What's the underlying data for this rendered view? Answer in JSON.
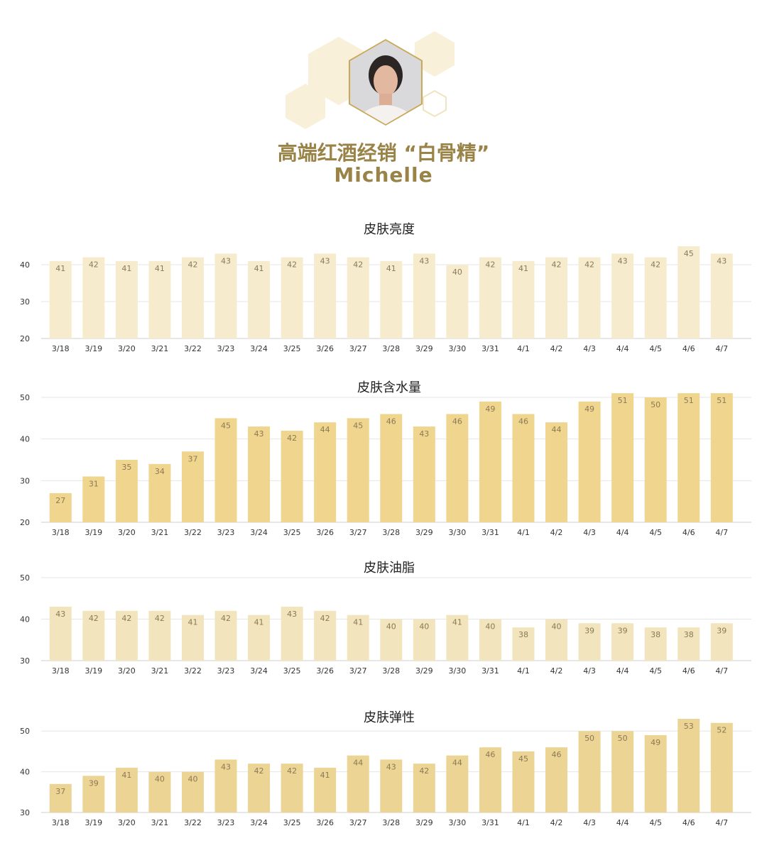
{
  "header": {
    "title_cn": "高端红酒经销 “白骨精”",
    "title_en": "Michelle"
  },
  "colors": {
    "title": "#9a8347",
    "hex_light": "#f8f0d8",
    "avatar_border": "#c9a957",
    "bar_brightness": "#f6ebcc",
    "bar_moisture": "#f0d58e",
    "bar_oil": "#f2e4bd",
    "bar_elasticity": "#ecd494"
  },
  "chart_data": [
    {
      "type": "bar",
      "title": "皮肤亮度",
      "categories": [
        "3/18",
        "3/19",
        "3/20",
        "3/21",
        "3/22",
        "3/23",
        "3/24",
        "3/25",
        "3/26",
        "3/27",
        "3/28",
        "3/29",
        "3/30",
        "3/31",
        "4/1",
        "4/2",
        "4/3",
        "4/4",
        "4/5",
        "4/6",
        "4/7"
      ],
      "values": [
        41,
        42,
        41,
        41,
        42,
        43,
        41,
        42,
        43,
        42,
        41,
        43,
        40,
        42,
        41,
        42,
        42,
        43,
        42,
        45,
        43
      ],
      "ylim": [
        20,
        45
      ],
      "yticks": [
        20,
        30,
        40
      ],
      "grid": true
    },
    {
      "type": "bar",
      "title": "皮肤含水量",
      "categories": [
        "3/18",
        "3/19",
        "3/20",
        "3/21",
        "3/22",
        "3/23",
        "3/24",
        "3/25",
        "3/26",
        "3/27",
        "3/28",
        "3/29",
        "3/30",
        "3/31",
        "4/1",
        "4/2",
        "4/3",
        "4/4",
        "4/5",
        "4/6",
        "4/7"
      ],
      "values": [
        27,
        31,
        35,
        34,
        37,
        45,
        43,
        42,
        44,
        45,
        46,
        43,
        46,
        49,
        46,
        44,
        49,
        51,
        50,
        51,
        51
      ],
      "ylim": [
        20,
        50
      ],
      "yticks": [
        20,
        30,
        40,
        50
      ],
      "grid": true
    },
    {
      "type": "bar",
      "title": "皮肤油脂",
      "categories": [
        "3/18",
        "3/19",
        "3/20",
        "3/21",
        "3/22",
        "3/23",
        "3/24",
        "3/25",
        "3/26",
        "3/27",
        "3/28",
        "3/29",
        "3/30",
        "3/31",
        "4/1",
        "4/2",
        "4/3",
        "4/4",
        "4/5",
        "4/6",
        "4/7"
      ],
      "values": [
        43,
        42,
        42,
        42,
        41,
        42,
        41,
        43,
        42,
        41,
        40,
        40,
        41,
        40,
        38,
        40,
        39,
        39,
        38,
        38,
        39
      ],
      "ylim": [
        30,
        50
      ],
      "yticks": [
        30,
        40,
        50
      ],
      "grid": true
    },
    {
      "type": "bar",
      "title": "皮肤弹性",
      "categories": [
        "3/18",
        "3/19",
        "3/20",
        "3/21",
        "3/22",
        "3/23",
        "3/24",
        "3/25",
        "3/26",
        "3/27",
        "3/28",
        "3/29",
        "3/30",
        "3/31",
        "4/1",
        "4/2",
        "4/3",
        "4/4",
        "4/5",
        "4/6",
        "4/7"
      ],
      "values": [
        37,
        39,
        41,
        40,
        40,
        43,
        42,
        42,
        41,
        44,
        43,
        42,
        44,
        46,
        45,
        46,
        50,
        50,
        49,
        53,
        52
      ],
      "ylim": [
        30,
        53
      ],
      "yticks": [
        30,
        40,
        50
      ],
      "grid": true
    }
  ]
}
